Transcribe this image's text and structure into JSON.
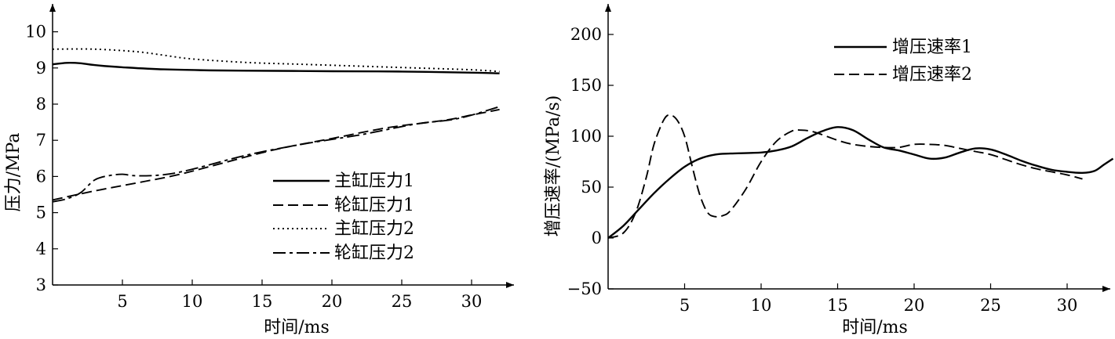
{
  "chart_data": [
    {
      "type": "line",
      "xlabel": "时间/ms",
      "ylabel": "压力/MPa",
      "xlim": [
        0,
        33
      ],
      "ylim": [
        3,
        10.5
      ],
      "x_ticks": [
        "5",
        "10",
        "15",
        "20",
        "25",
        "30"
      ],
      "y_ticks": [
        "3",
        "4",
        "5",
        "6",
        "7",
        "8",
        "9",
        "10"
      ],
      "legend_position": "lower-right",
      "series": [
        {
          "name": "主缸压力1",
          "style": "solid",
          "points": [
            [
              0,
              9.1
            ],
            [
              1,
              9.14
            ],
            [
              2,
              9.13
            ],
            [
              3,
              9.08
            ],
            [
              5,
              9.02
            ],
            [
              8,
              8.96
            ],
            [
              12,
              8.93
            ],
            [
              16,
              8.92
            ],
            [
              20,
              8.91
            ],
            [
              25,
              8.9
            ],
            [
              30,
              8.87
            ],
            [
              32,
              8.85
            ]
          ]
        },
        {
          "name": "轮缸压力1",
          "style": "dashed",
          "points": [
            [
              0,
              5.35
            ],
            [
              3,
              5.6
            ],
            [
              6,
              5.82
            ],
            [
              9,
              6.05
            ],
            [
              12,
              6.35
            ],
            [
              16,
              6.75
            ],
            [
              20,
              7.05
            ],
            [
              24,
              7.35
            ],
            [
              28,
              7.55
            ],
            [
              30,
              7.7
            ],
            [
              32,
              7.85
            ]
          ]
        },
        {
          "name": "主缸压力2",
          "style": "dotted",
          "points": [
            [
              0,
              9.52
            ],
            [
              3,
              9.52
            ],
            [
              6,
              9.45
            ],
            [
              8,
              9.35
            ],
            [
              10,
              9.25
            ],
            [
              14,
              9.15
            ],
            [
              18,
              9.1
            ],
            [
              22,
              9.05
            ],
            [
              26,
              9
            ],
            [
              30,
              8.95
            ],
            [
              32,
              8.9
            ]
          ]
        },
        {
          "name": "轮缸压力2",
          "style": "dashdot",
          "points": [
            [
              0,
              5.3
            ],
            [
              1,
              5.38
            ],
            [
              2,
              5.55
            ],
            [
              3,
              5.9
            ],
            [
              4,
              6.02
            ],
            [
              5,
              6.06
            ],
            [
              6,
              6.02
            ],
            [
              8,
              6.05
            ],
            [
              10,
              6.2
            ],
            [
              14,
              6.6
            ],
            [
              18,
              6.9
            ],
            [
              22,
              7.15
            ],
            [
              26,
              7.45
            ],
            [
              29,
              7.6
            ],
            [
              32,
              7.93
            ]
          ]
        }
      ]
    },
    {
      "type": "line",
      "xlabel": "时间/ms",
      "ylabel": "增压速率/(MPa/s)",
      "xlim": [
        0,
        33
      ],
      "ylim": [
        -50,
        225
      ],
      "x_ticks": [
        "5",
        "10",
        "15",
        "20",
        "25",
        "30"
      ],
      "y_ticks": [
        "−50",
        "0",
        "50",
        "100",
        "150",
        "200"
      ],
      "legend_position": "top-center",
      "series": [
        {
          "name": "增压速率1",
          "style": "solid",
          "points": [
            [
              0,
              0
            ],
            [
              1,
              12
            ],
            [
              2,
              28
            ],
            [
              3,
              44
            ],
            [
              4,
              58
            ],
            [
              5,
              70
            ],
            [
              6,
              78
            ],
            [
              7,
              82
            ],
            [
              8,
              83
            ],
            [
              10,
              84
            ],
            [
              11,
              86
            ],
            [
              12,
              90
            ],
            [
              13,
              98
            ],
            [
              14,
              105
            ],
            [
              15,
              109
            ],
            [
              16,
              106
            ],
            [
              17,
              97
            ],
            [
              18,
              89
            ],
            [
              19,
              86
            ],
            [
              20,
              82
            ],
            [
              21,
              78
            ],
            [
              22,
              79
            ],
            [
              23,
              84
            ],
            [
              24,
              88
            ],
            [
              25,
              87
            ],
            [
              26,
              82
            ],
            [
              27,
              76
            ],
            [
              28,
              71
            ],
            [
              29,
              67
            ],
            [
              30,
              65
            ],
            [
              31,
              64
            ],
            [
              31.8,
              66
            ],
            [
              32.4,
              72
            ],
            [
              33,
              78
            ]
          ]
        },
        {
          "name": "增压速率2",
          "style": "dashed",
          "points": [
            [
              0,
              0
            ],
            [
              1,
              5
            ],
            [
              1.8,
              25
            ],
            [
              2.5,
              60
            ],
            [
              3,
              92
            ],
            [
              3.6,
              115
            ],
            [
              4,
              121
            ],
            [
              4.5,
              116
            ],
            [
              5,
              100
            ],
            [
              5.5,
              70
            ],
            [
              6,
              42
            ],
            [
              6.5,
              25
            ],
            [
              7,
              21
            ],
            [
              7.5,
              22
            ],
            [
              8,
              27
            ],
            [
              9,
              48
            ],
            [
              10,
              75
            ],
            [
              11,
              95
            ],
            [
              12,
              105
            ],
            [
              12.6,
              106
            ],
            [
              13.5,
              104
            ],
            [
              15,
              96
            ],
            [
              16,
              92
            ],
            [
              17,
              90
            ],
            [
              18,
              89
            ],
            [
              19,
              89
            ],
            [
              20,
              92
            ],
            [
              21,
              92
            ],
            [
              22,
              91
            ],
            [
              23,
              88
            ],
            [
              24,
              85
            ],
            [
              25,
              82
            ],
            [
              26,
              77
            ],
            [
              27,
              72
            ],
            [
              28,
              68
            ],
            [
              29,
              65
            ],
            [
              30,
              62
            ],
            [
              31,
              58
            ]
          ]
        }
      ]
    }
  ]
}
